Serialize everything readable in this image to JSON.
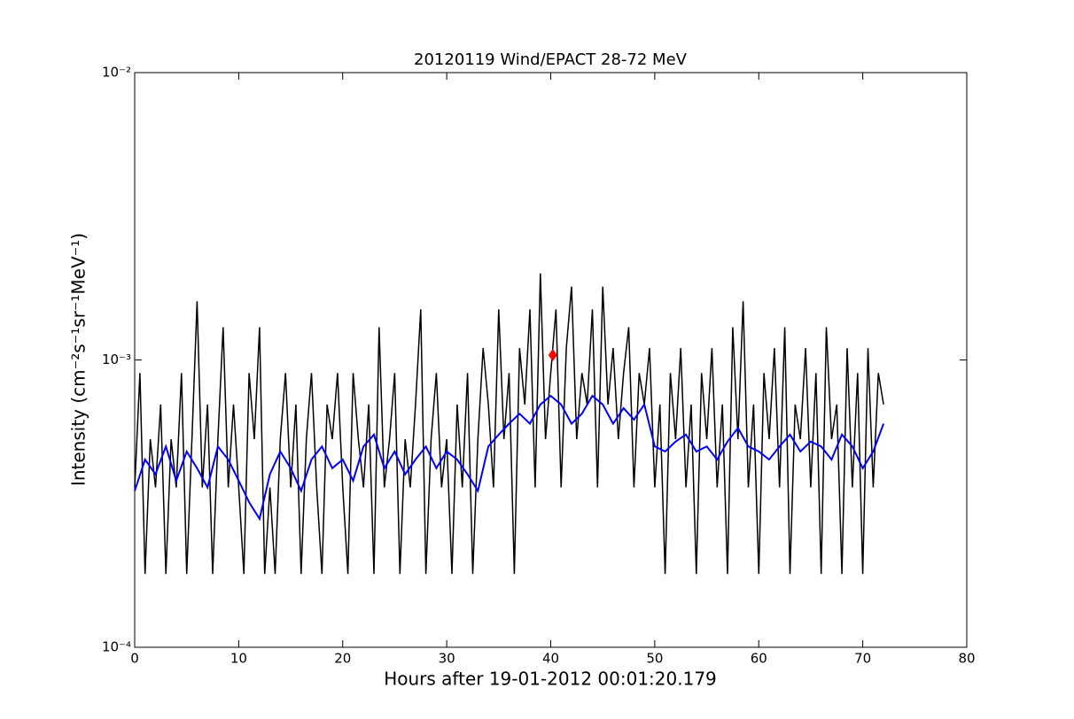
{
  "chart_data": {
    "type": "line",
    "title": "20120119 Wind/EPACT 28-72 MeV",
    "xlabel": "Hours after 19-01-2012 00:01:20.179",
    "ylabel": "Intensity (cm⁻²s⁻¹sr⁻¹MeV⁻¹)",
    "xlim": [
      0,
      80
    ],
    "xticks": [
      0,
      10,
      20,
      30,
      40,
      50,
      60,
      70,
      80
    ],
    "ylim": [
      0.0001,
      0.01
    ],
    "ylog": true,
    "yticks": [
      {
        "value": 0.0001,
        "label": "10⁻⁴"
      },
      {
        "value": 0.001,
        "label": "10⁻³"
      },
      {
        "value": 0.01,
        "label": "10⁻²"
      }
    ],
    "series": [
      {
        "color": "#000000",
        "x": [
          0,
          0.5,
          1,
          1.5,
          2,
          2.5,
          3,
          3.5,
          4,
          4.5,
          5,
          5.5,
          6,
          6.5,
          7,
          7.5,
          8,
          8.5,
          9,
          9.5,
          10,
          10.5,
          11,
          11.5,
          12,
          12.5,
          13,
          13.5,
          14,
          14.5,
          15,
          15.5,
          16,
          16.5,
          17,
          17.5,
          18,
          18.5,
          19,
          19.5,
          20,
          20.5,
          21,
          21.5,
          22,
          22.5,
          23,
          23.5,
          24,
          24.5,
          25,
          25.5,
          26,
          26.5,
          27,
          27.5,
          28,
          28.5,
          29,
          29.5,
          30,
          30.5,
          31,
          31.5,
          32,
          32.5,
          33,
          33.5,
          34,
          34.5,
          35,
          35.5,
          36,
          36.5,
          37,
          37.5,
          38,
          38.5,
          39,
          39.5,
          40,
          40.5,
          41,
          41.5,
          42,
          42.5,
          43,
          43.5,
          44,
          44.5,
          45,
          45.5,
          46,
          46.5,
          47,
          47.5,
          48,
          48.5,
          49,
          49.5,
          50,
          50.5,
          51,
          51.5,
          52,
          52.5,
          53,
          53.5,
          54,
          54.5,
          55,
          55.5,
          56,
          56.5,
          57,
          57.5,
          58,
          58.5,
          59,
          59.5,
          60,
          60.5,
          61,
          61.5,
          62,
          62.5,
          63,
          63.5,
          64,
          64.5,
          65,
          65.5,
          66,
          66.5,
          67,
          67.5,
          68,
          68.5,
          69,
          69.5,
          70,
          70.5,
          71,
          71.5,
          72
        ],
        "values": [
          0.00036,
          0.0009,
          0.00018,
          0.00053,
          0.00036,
          0.0007,
          0.00018,
          0.00053,
          0.00036,
          0.0009,
          0.00018,
          0.00053,
          0.0016,
          0.00036,
          0.0007,
          0.00018,
          0.00053,
          0.0013,
          0.00036,
          0.0007,
          0.00036,
          0.00018,
          0.0009,
          0.00053,
          0.0013,
          0.00018,
          0.00036,
          0.00018,
          0.00053,
          0.0009,
          0.00036,
          0.0007,
          0.00018,
          0.00053,
          0.0009,
          0.00036,
          0.00018,
          0.0007,
          0.00053,
          0.0009,
          0.00036,
          0.00018,
          0.0009,
          0.00053,
          0.00036,
          0.0007,
          0.00018,
          0.0013,
          0.00036,
          0.00053,
          0.0009,
          0.00018,
          0.00053,
          0.00036,
          0.0007,
          0.0015,
          0.00018,
          0.00053,
          0.0009,
          0.00036,
          0.00053,
          0.00018,
          0.0007,
          0.00036,
          0.0009,
          0.00018,
          0.00053,
          0.0011,
          0.0007,
          0.00036,
          0.0015,
          0.00053,
          0.0009,
          0.00018,
          0.0011,
          0.0007,
          0.0015,
          0.00036,
          0.002,
          0.00053,
          0.0009,
          0.0015,
          0.00036,
          0.0011,
          0.0018,
          0.00053,
          0.0009,
          0.0007,
          0.0015,
          0.00036,
          0.0018,
          0.0007,
          0.0011,
          0.00053,
          0.0009,
          0.0013,
          0.00036,
          0.0009,
          0.0007,
          0.0011,
          0.00036,
          0.0007,
          0.00018,
          0.0009,
          0.00053,
          0.0011,
          0.00036,
          0.0007,
          0.00018,
          0.0009,
          0.00053,
          0.0011,
          0.00036,
          0.0007,
          0.00018,
          0.0013,
          0.00053,
          0.0016,
          0.00036,
          0.0007,
          0.00018,
          0.0009,
          0.00053,
          0.0011,
          0.00036,
          0.0013,
          0.00018,
          0.0007,
          0.00053,
          0.0011,
          0.00036,
          0.0009,
          0.00018,
          0.0013,
          0.00053,
          0.0007,
          0.00018,
          0.0011,
          0.00036,
          0.0009,
          0.00018,
          0.0011,
          0.00036,
          0.0009,
          0.0007
        ]
      },
      {
        "color": "#0000ff",
        "x": [
          0,
          1,
          2,
          3,
          4,
          5,
          6,
          7,
          8,
          9,
          10,
          11,
          12,
          13,
          14,
          15,
          16,
          17,
          18,
          19,
          20,
          21,
          22,
          23,
          24,
          25,
          26,
          27,
          28,
          29,
          30,
          31,
          32,
          33,
          34,
          35,
          36,
          37,
          38,
          39,
          40,
          41,
          42,
          43,
          44,
          45,
          46,
          47,
          48,
          49,
          50,
          51,
          52,
          53,
          54,
          55,
          56,
          57,
          58,
          59,
          60,
          61,
          62,
          63,
          64,
          65,
          66,
          67,
          68,
          69,
          70,
          71,
          72
        ],
        "values": [
          0.00035,
          0.00045,
          0.0004,
          0.0005,
          0.00038,
          0.00048,
          0.00042,
          0.00036,
          0.0005,
          0.00045,
          0.00038,
          0.00032,
          0.00028,
          0.0004,
          0.00048,
          0.00042,
          0.00035,
          0.00045,
          0.0005,
          0.00042,
          0.00045,
          0.00038,
          0.0005,
          0.00055,
          0.00042,
          0.00048,
          0.0004,
          0.00045,
          0.0005,
          0.00042,
          0.00048,
          0.00045,
          0.0004,
          0.00035,
          0.0005,
          0.00055,
          0.0006,
          0.00065,
          0.0006,
          0.0007,
          0.00075,
          0.0007,
          0.0006,
          0.00065,
          0.00075,
          0.0007,
          0.0006,
          0.00068,
          0.00062,
          0.0007,
          0.0005,
          0.00048,
          0.00052,
          0.00055,
          0.00048,
          0.0005,
          0.00045,
          0.00052,
          0.00058,
          0.0005,
          0.00048,
          0.00045,
          0.0005,
          0.00055,
          0.00048,
          0.00052,
          0.0005,
          0.00045,
          0.00055,
          0.0005,
          0.00042,
          0.00048,
          0.0006
        ]
      },
      {
        "color": "#ff0000",
        "marker": true,
        "x": [
          40.2
        ],
        "values": [
          0.00104
        ]
      }
    ]
  }
}
